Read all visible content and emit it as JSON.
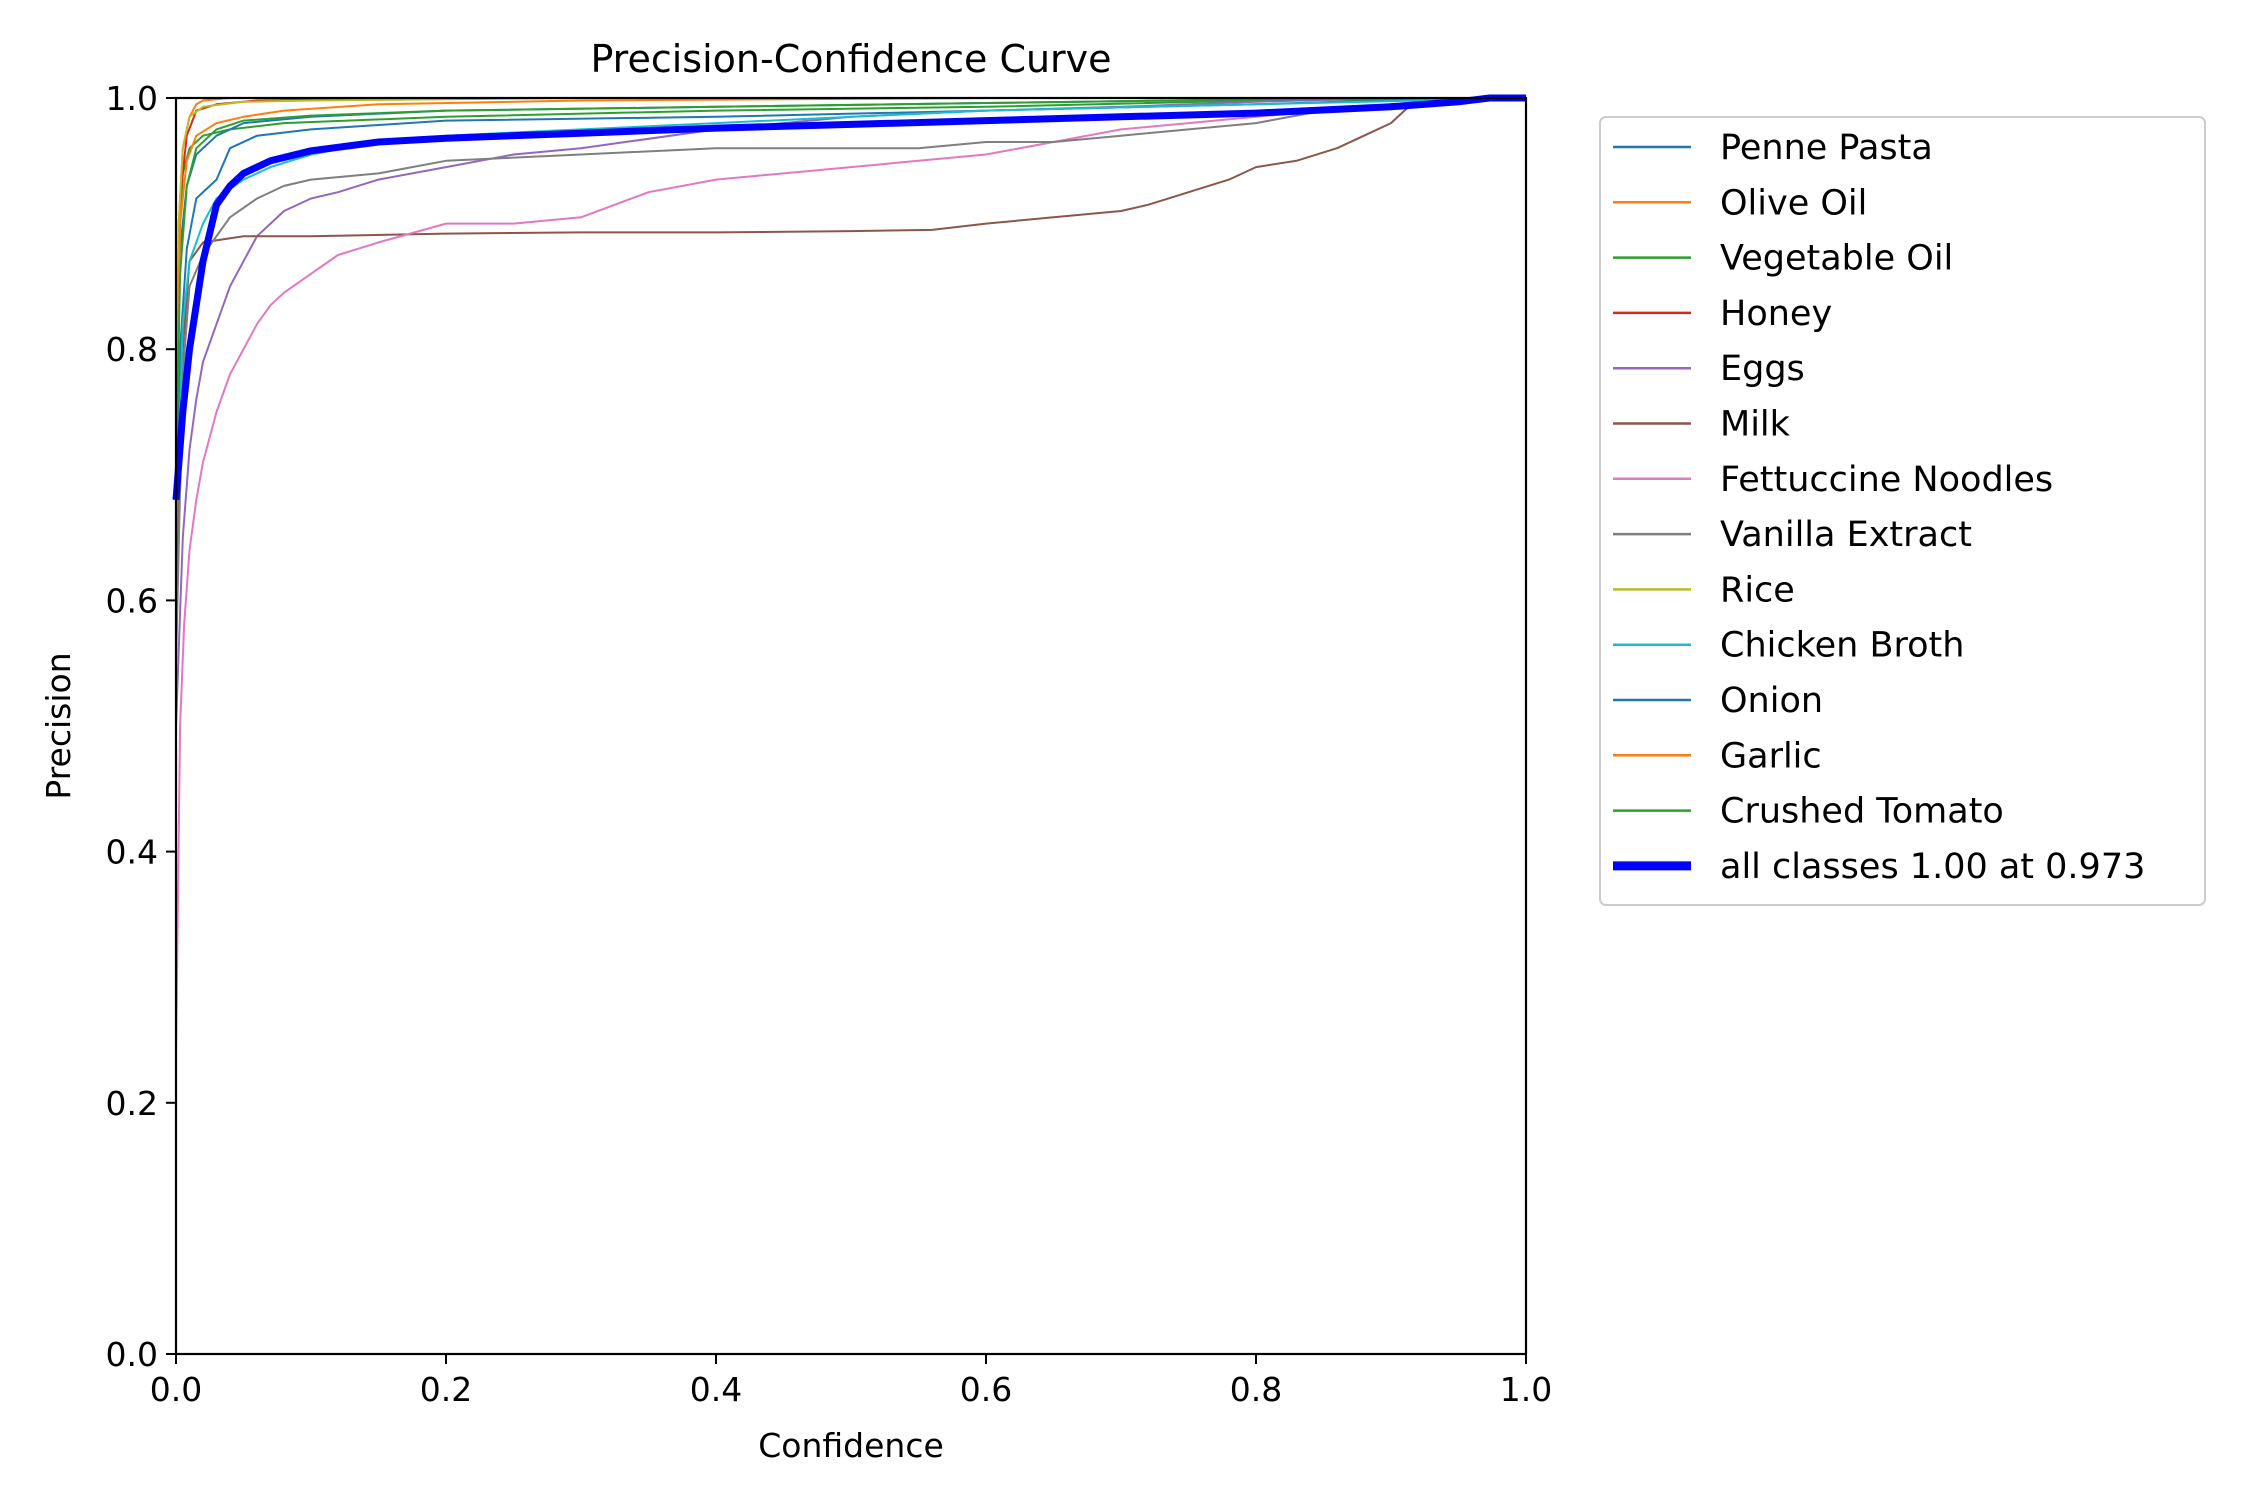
{
  "chart_data": {
    "type": "line",
    "title": "Precision-Confidence Curve",
    "xlabel": "Confidence",
    "ylabel": "Precision",
    "xlim": [
      0,
      1
    ],
    "ylim": [
      0,
      1
    ],
    "xticks": [
      0.0,
      0.2,
      0.4,
      0.6,
      0.8,
      1.0
    ],
    "yticks": [
      0.0,
      0.2,
      0.4,
      0.6,
      0.8,
      1.0
    ],
    "xtick_labels": [
      "0.0",
      "0.2",
      "0.4",
      "0.6",
      "0.8",
      "1.0"
    ],
    "ytick_labels": [
      "0.0",
      "0.2",
      "0.4",
      "0.6",
      "0.8",
      "1.0"
    ],
    "grid": false,
    "legend_position": "outside-right-top",
    "series": [
      {
        "name": "Penne Pasta",
        "color": "#1f77b4",
        "width": 2,
        "x": [
          0,
          0.003,
          0.008,
          0.015,
          0.03,
          0.04,
          0.06,
          0.1,
          0.2,
          0.4,
          0.6,
          0.8,
          0.95,
          1.0
        ],
        "y": [
          0.62,
          0.8,
          0.88,
          0.92,
          0.935,
          0.96,
          0.97,
          0.975,
          0.982,
          0.985,
          0.99,
          0.995,
          1.0,
          1.0
        ]
      },
      {
        "name": "Olive Oil",
        "color": "#ff7f0e",
        "width": 2,
        "x": [
          0,
          0.002,
          0.005,
          0.01,
          0.015,
          0.02,
          0.04,
          0.1,
          0.3,
          0.6,
          1.0
        ],
        "y": [
          0.7,
          0.9,
          0.96,
          0.985,
          0.995,
          0.998,
          1.0,
          1.0,
          1.0,
          1.0,
          1.0
        ]
      },
      {
        "name": "Vegetable Oil",
        "color": "#2ca02c",
        "width": 2,
        "x": [
          0,
          0.002,
          0.005,
          0.01,
          0.02,
          0.04,
          0.08,
          0.2,
          0.4,
          0.6,
          0.8,
          1.0
        ],
        "y": [
          0.72,
          0.88,
          0.94,
          0.96,
          0.97,
          0.975,
          0.98,
          0.985,
          0.99,
          0.993,
          0.998,
          1.0
        ]
      },
      {
        "name": "Honey",
        "color": "#d62728",
        "width": 2,
        "x": [
          0,
          0.003,
          0.008,
          0.015,
          0.03,
          0.06,
          0.2,
          0.5,
          1.0
        ],
        "y": [
          0.75,
          0.92,
          0.97,
          0.99,
          0.995,
          0.998,
          1.0,
          1.0,
          1.0
        ]
      },
      {
        "name": "Eggs",
        "color": "#9467bd",
        "width": 2,
        "x": [
          0,
          0.005,
          0.01,
          0.015,
          0.02,
          0.03,
          0.04,
          0.05,
          0.06,
          0.07,
          0.08,
          0.1,
          0.12,
          0.15,
          0.2,
          0.25,
          0.3,
          0.4,
          0.5,
          0.6,
          0.7,
          0.8,
          0.9,
          1.0
        ],
        "y": [
          0.5,
          0.65,
          0.72,
          0.76,
          0.79,
          0.82,
          0.85,
          0.87,
          0.89,
          0.9,
          0.91,
          0.92,
          0.925,
          0.935,
          0.945,
          0.955,
          0.96,
          0.975,
          0.985,
          0.99,
          0.993,
          0.997,
          1.0,
          1.0
        ]
      },
      {
        "name": "Milk",
        "color": "#8c564b",
        "width": 2,
        "x": [
          0,
          0.005,
          0.01,
          0.02,
          0.05,
          0.1,
          0.2,
          0.3,
          0.4,
          0.5,
          0.56,
          0.6,
          0.65,
          0.7,
          0.72,
          0.75,
          0.78,
          0.8,
          0.83,
          0.86,
          0.88,
          0.9,
          0.91,
          0.92,
          1.0
        ],
        "y": [
          0.6,
          0.8,
          0.87,
          0.885,
          0.89,
          0.89,
          0.892,
          0.893,
          0.893,
          0.894,
          0.895,
          0.9,
          0.905,
          0.91,
          0.915,
          0.925,
          0.935,
          0.945,
          0.95,
          0.96,
          0.97,
          0.98,
          0.99,
          1.0,
          1.0
        ]
      },
      {
        "name": "Fettuccine Noodles",
        "color": "#e377c2",
        "width": 2,
        "x": [
          0,
          0.003,
          0.006,
          0.01,
          0.015,
          0.02,
          0.03,
          0.04,
          0.05,
          0.06,
          0.07,
          0.08,
          0.1,
          0.12,
          0.15,
          0.2,
          0.25,
          0.3,
          0.35,
          0.4,
          0.5,
          0.55,
          0.6,
          0.65,
          0.7,
          0.75,
          0.8,
          0.85,
          0.9,
          0.95,
          1.0
        ],
        "y": [
          0.24,
          0.5,
          0.58,
          0.64,
          0.68,
          0.71,
          0.75,
          0.78,
          0.8,
          0.82,
          0.835,
          0.845,
          0.86,
          0.875,
          0.885,
          0.9,
          0.9,
          0.905,
          0.925,
          0.935,
          0.945,
          0.95,
          0.955,
          0.965,
          0.975,
          0.98,
          0.985,
          0.99,
          0.995,
          1.0,
          1.0
        ]
      },
      {
        "name": "Vanilla Extract",
        "color": "#7f7f7f",
        "width": 2,
        "x": [
          0,
          0.005,
          0.01,
          0.02,
          0.03,
          0.04,
          0.06,
          0.08,
          0.1,
          0.15,
          0.2,
          0.3,
          0.4,
          0.5,
          0.55,
          0.6,
          0.65,
          0.7,
          0.75,
          0.8,
          0.85,
          0.9,
          1.0
        ],
        "y": [
          0.55,
          0.78,
          0.85,
          0.875,
          0.89,
          0.905,
          0.92,
          0.93,
          0.935,
          0.94,
          0.95,
          0.955,
          0.96,
          0.96,
          0.96,
          0.965,
          0.965,
          0.97,
          0.975,
          0.98,
          0.99,
          0.995,
          1.0
        ]
      },
      {
        "name": "Rice",
        "color": "#bcbd22",
        "width": 2,
        "x": [
          0,
          0.002,
          0.005,
          0.01,
          0.02,
          0.05,
          0.1,
          0.3,
          0.6,
          1.0
        ],
        "y": [
          0.7,
          0.9,
          0.96,
          0.985,
          0.993,
          0.997,
          0.998,
          1.0,
          1.0,
          1.0
        ]
      },
      {
        "name": "Chicken Broth",
        "color": "#17becf",
        "width": 2,
        "x": [
          0,
          0.005,
          0.01,
          0.02,
          0.03,
          0.05,
          0.07,
          0.1,
          0.15,
          0.2,
          0.3,
          0.4,
          0.6,
          0.8,
          1.0
        ],
        "y": [
          0.65,
          0.82,
          0.87,
          0.9,
          0.92,
          0.935,
          0.945,
          0.955,
          0.965,
          0.97,
          0.975,
          0.98,
          0.99,
          0.995,
          1.0
        ]
      },
      {
        "name": "Onion",
        "color": "#1f77b4",
        "width": 2,
        "x": [
          0,
          0.003,
          0.008,
          0.015,
          0.03,
          0.05,
          0.1,
          0.2,
          0.4,
          0.6,
          0.8,
          1.0
        ],
        "y": [
          0.7,
          0.88,
          0.93,
          0.955,
          0.97,
          0.98,
          0.985,
          0.99,
          0.993,
          0.996,
          0.999,
          1.0
        ]
      },
      {
        "name": "Garlic",
        "color": "#ff7f0e",
        "width": 2,
        "x": [
          0,
          0.003,
          0.008,
          0.015,
          0.03,
          0.05,
          0.08,
          0.15,
          0.3,
          0.6,
          1.0
        ],
        "y": [
          0.72,
          0.9,
          0.95,
          0.97,
          0.98,
          0.985,
          0.99,
          0.995,
          0.998,
          1.0,
          1.0
        ]
      },
      {
        "name": "Crushed Tomato",
        "color": "#2ca02c",
        "width": 2,
        "x": [
          0,
          0.003,
          0.008,
          0.015,
          0.03,
          0.05,
          0.1,
          0.2,
          0.4,
          0.6,
          0.8,
          1.0
        ],
        "y": [
          0.7,
          0.86,
          0.93,
          0.96,
          0.975,
          0.982,
          0.986,
          0.99,
          0.993,
          0.996,
          0.999,
          1.0
        ]
      },
      {
        "name": "all classes 1.00 at 0.973",
        "color": "#0000ff",
        "width": 7,
        "x": [
          0,
          0.005,
          0.01,
          0.02,
          0.03,
          0.04,
          0.05,
          0.07,
          0.1,
          0.15,
          0.2,
          0.3,
          0.4,
          0.5,
          0.6,
          0.7,
          0.8,
          0.9,
          0.95,
          0.973,
          1.0
        ],
        "y": [
          0.68,
          0.75,
          0.8,
          0.87,
          0.915,
          0.93,
          0.94,
          0.95,
          0.958,
          0.965,
          0.968,
          0.972,
          0.976,
          0.979,
          0.982,
          0.985,
          0.988,
          0.993,
          0.997,
          1.0,
          1.0
        ]
      }
    ]
  }
}
